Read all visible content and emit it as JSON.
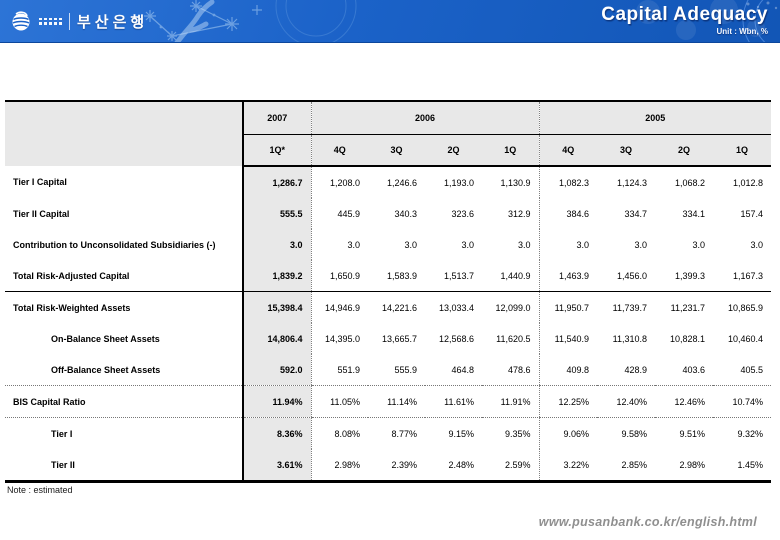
{
  "header": {
    "logo_text": "부산은행",
    "title": "Capital Adequacy",
    "unit": "Unit : Wbn, %",
    "accent_color": "#1b62c8",
    "icons": {
      "logo_globe": "striped-globe-icon",
      "decorations": [
        "snowflake-cluster-icon",
        "concentric-rings-icon",
        "bubbles-icon"
      ]
    }
  },
  "table": {
    "year_groups": [
      {
        "label": "2007",
        "colspan": 1
      },
      {
        "label": "2006",
        "colspan": 4
      },
      {
        "label": "2005",
        "colspan": 4
      }
    ],
    "quarter_headers": [
      "1Q*",
      "4Q",
      "3Q",
      "2Q",
      "1Q",
      "4Q",
      "3Q",
      "2Q",
      "1Q"
    ],
    "rows": [
      {
        "label": "Tier I Capital",
        "indent": false,
        "rule": "none",
        "values": [
          "1,286.7",
          "1,208.0",
          "1,246.6",
          "1,193.0",
          "1,130.9",
          "1,082.3",
          "1,124.3",
          "1,068.2",
          "1,012.8"
        ]
      },
      {
        "label": "Tier II Capital",
        "indent": false,
        "rule": "none",
        "values": [
          "555.5",
          "445.9",
          "340.3",
          "323.6",
          "312.9",
          "384.6",
          "334.7",
          "334.1",
          "157.4"
        ]
      },
      {
        "label": "Contribution to Unconsolidated Subsidiaries (-)",
        "indent": false,
        "rule": "none",
        "values": [
          "3.0",
          "3.0",
          "3.0",
          "3.0",
          "3.0",
          "3.0",
          "3.0",
          "3.0",
          "3.0"
        ]
      },
      {
        "label": "Total Risk-Adjusted Capital",
        "indent": false,
        "rule": "solid",
        "values": [
          "1,839.2",
          "1,650.9",
          "1,583.9",
          "1,513.7",
          "1,440.9",
          "1,463.9",
          "1,456.0",
          "1,399.3",
          "1,167.3"
        ]
      },
      {
        "label": "Total Risk-Weighted Assets",
        "indent": false,
        "rule": "none",
        "values": [
          "15,398.4",
          "14,946.9",
          "14,221.6",
          "13,033.4",
          "12,099.0",
          "11,950.7",
          "11,739.7",
          "11,231.7",
          "10,865.9"
        ]
      },
      {
        "label": "On-Balance Sheet Assets",
        "indent": true,
        "rule": "none",
        "values": [
          "14,806.4",
          "14,395.0",
          "13,665.7",
          "12,568.6",
          "11,620.5",
          "11,540.9",
          "11,310.8",
          "10,828.1",
          "10,460.4"
        ]
      },
      {
        "label": "Off-Balance Sheet Assets",
        "indent": true,
        "rule": "dotted",
        "values": [
          "592.0",
          "551.9",
          "555.9",
          "464.8",
          "478.6",
          "409.8",
          "428.9",
          "403.6",
          "405.5"
        ]
      },
      {
        "label": "BIS Capital Ratio",
        "indent": false,
        "rule": "dotted",
        "values": [
          "11.94%",
          "11.05%",
          "11.14%",
          "11.61%",
          "11.91%",
          "12.25%",
          "12.40%",
          "12.46%",
          "10.74%"
        ]
      },
      {
        "label": "Tier I",
        "indent": true,
        "rule": "none",
        "values": [
          "8.36%",
          "8.08%",
          "8.77%",
          "9.15%",
          "9.35%",
          "9.06%",
          "9.58%",
          "9.51%",
          "9.32%"
        ]
      },
      {
        "label": "Tier II",
        "indent": true,
        "rule": "none",
        "values": [
          "3.61%",
          "2.98%",
          "2.39%",
          "2.48%",
          "2.59%",
          "3.22%",
          "2.85%",
          "2.98%",
          "1.45%"
        ]
      }
    ]
  },
  "footer": {
    "note": "Note : estimated",
    "url": "www.pusanbank.co.kr/english.html"
  }
}
